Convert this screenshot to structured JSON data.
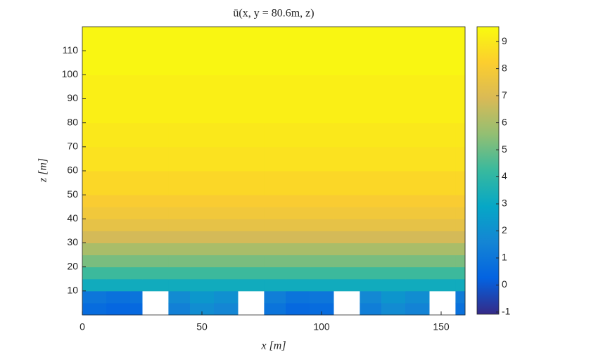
{
  "chart_data": {
    "type": "heatmap",
    "title": "ū(x, y = 80.6m, z)",
    "x_label": "x [m]",
    "y_label": "z [m]",
    "xlim": [
      0,
      160
    ],
    "xticks": [
      0,
      50,
      100,
      150
    ],
    "ylim": [
      0,
      120
    ],
    "yticks": [
      10,
      20,
      30,
      40,
      50,
      60,
      70,
      80,
      90,
      100,
      110
    ],
    "clim": [
      -1.08,
      9.55
    ],
    "cticks": [
      -1,
      0,
      1,
      2,
      3,
      4,
      5,
      6,
      7,
      8,
      9
    ],
    "colormap": [
      "#352a87",
      "#0363e1",
      "#1485d4",
      "#06a7c6",
      "#38b99e",
      "#92bf73",
      "#d9ba56",
      "#fcce2e",
      "#f9fb0e"
    ],
    "x_bins": [
      0,
      10,
      20,
      25,
      36,
      45,
      55,
      65,
      76,
      85,
      95,
      105,
      116,
      125,
      135,
      145,
      156,
      160
    ],
    "y_bins": [
      0,
      5,
      10,
      15,
      20,
      25,
      30,
      35,
      40,
      45,
      50,
      60,
      70,
      80,
      100,
      120
    ],
    "values": [
      [
        0.6,
        0.4,
        0.5,
        null,
        1.4,
        1.9,
        1.6,
        null,
        0.9,
        0.5,
        0.6,
        null,
        1.3,
        1.8,
        1.5,
        null,
        0.8
      ],
      [
        1.0,
        0.8,
        0.9,
        null,
        1.8,
        2.3,
        2.0,
        null,
        1.3,
        0.9,
        1.0,
        null,
        1.7,
        2.2,
        1.9,
        null,
        1.2
      ],
      [
        3.2,
        3.2,
        3.2,
        3.2,
        3.2,
        3.2,
        3.2,
        3.2,
        3.2,
        3.2,
        3.2,
        3.2,
        3.2,
        3.2,
        3.2,
        3.2,
        3.2
      ],
      [
        4.3,
        4.3,
        4.3,
        4.3,
        4.3,
        4.3,
        4.3,
        4.3,
        4.3,
        4.3,
        4.3,
        4.3,
        4.3,
        4.3,
        4.3,
        4.3,
        4.3
      ],
      [
        5.2,
        5.2,
        5.2,
        5.2,
        5.2,
        5.2,
        5.2,
        5.2,
        5.2,
        5.2,
        5.2,
        5.2,
        5.2,
        5.2,
        5.2,
        5.2,
        5.2
      ],
      [
        6.0,
        6.0,
        6.0,
        6.0,
        6.0,
        6.0,
        6.0,
        6.0,
        6.0,
        6.0,
        6.0,
        6.0,
        6.0,
        6.0,
        6.0,
        6.0,
        6.0
      ],
      [
        6.8,
        6.8,
        6.8,
        6.8,
        6.8,
        6.8,
        6.8,
        6.8,
        6.8,
        6.8,
        6.8,
        6.8,
        6.8,
        6.8,
        6.8,
        6.8,
        6.8
      ],
      [
        7.4,
        7.4,
        7.4,
        7.4,
        7.4,
        7.4,
        7.4,
        7.4,
        7.4,
        7.4,
        7.4,
        7.4,
        7.4,
        7.4,
        7.4,
        7.4,
        7.4
      ],
      [
        7.8,
        7.8,
        7.8,
        7.8,
        7.8,
        7.8,
        7.8,
        7.8,
        7.8,
        7.8,
        7.8,
        7.8,
        7.8,
        7.8,
        7.8,
        7.8,
        7.8
      ],
      [
        8.1,
        8.1,
        8.1,
        8.1,
        8.1,
        8.1,
        8.1,
        8.1,
        8.1,
        8.1,
        8.1,
        8.1,
        8.1,
        8.1,
        8.1,
        8.1,
        8.1
      ],
      [
        8.5,
        8.5,
        8.5,
        8.5,
        8.5,
        8.5,
        8.5,
        8.5,
        8.5,
        8.5,
        8.5,
        8.5,
        8.5,
        8.5,
        8.5,
        8.5,
        8.5
      ],
      [
        8.8,
        8.8,
        8.8,
        8.8,
        8.8,
        8.8,
        8.8,
        8.8,
        8.8,
        8.8,
        8.8,
        8.8,
        8.8,
        8.8,
        8.8,
        8.8,
        8.8
      ],
      [
        9.0,
        9.0,
        9.0,
        9.0,
        9.0,
        9.0,
        9.0,
        9.0,
        9.0,
        9.0,
        9.0,
        9.0,
        9.0,
        9.0,
        9.0,
        9.0,
        9.0
      ],
      [
        9.2,
        9.2,
        9.2,
        9.2,
        9.2,
        9.2,
        9.2,
        9.2,
        9.2,
        9.2,
        9.2,
        9.2,
        9.2,
        9.2,
        9.2,
        9.2,
        9.2
      ],
      [
        9.4,
        9.4,
        9.4,
        9.4,
        9.4,
        9.4,
        9.4,
        9.4,
        9.4,
        9.4,
        9.4,
        9.4,
        9.4,
        9.4,
        9.4,
        9.4,
        9.4
      ]
    ]
  }
}
